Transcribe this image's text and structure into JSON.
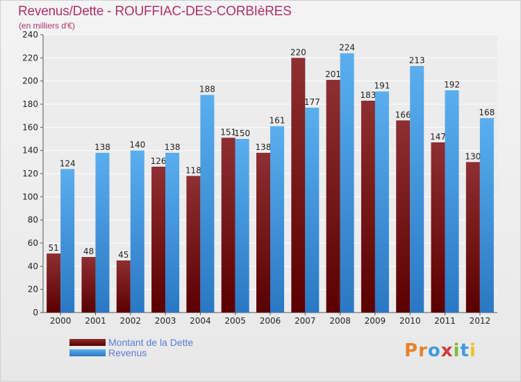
{
  "title": "Revenus/Dette - ROUFFIAC-DES-CORBIèRES",
  "subtitle": "(en milliers d'€)",
  "logo_text": "Proxiti",
  "colors": {
    "dette": "#8b1a1a",
    "revenus": "#3f9be0",
    "title": "#b0306a"
  },
  "chart_data": {
    "type": "bar",
    "categories": [
      "2000",
      "2001",
      "2002",
      "2003",
      "2004",
      "2005",
      "2006",
      "2007",
      "2008",
      "2009",
      "2010",
      "2011",
      "2012"
    ],
    "series": [
      {
        "name": "Montant de la Dette",
        "values": [
          51,
          48,
          45,
          126,
          118,
          151,
          138,
          220,
          201,
          183,
          166,
          147,
          130
        ]
      },
      {
        "name": "Revenus",
        "values": [
          124,
          138,
          140,
          138,
          188,
          150,
          161,
          177,
          224,
          191,
          213,
          192,
          168
        ]
      }
    ],
    "ylim": [
      0,
      240
    ],
    "yticks": [
      0,
      20,
      40,
      60,
      80,
      100,
      120,
      140,
      160,
      180,
      200,
      220,
      240
    ],
    "grid": true,
    "legend": "bottom-left"
  }
}
